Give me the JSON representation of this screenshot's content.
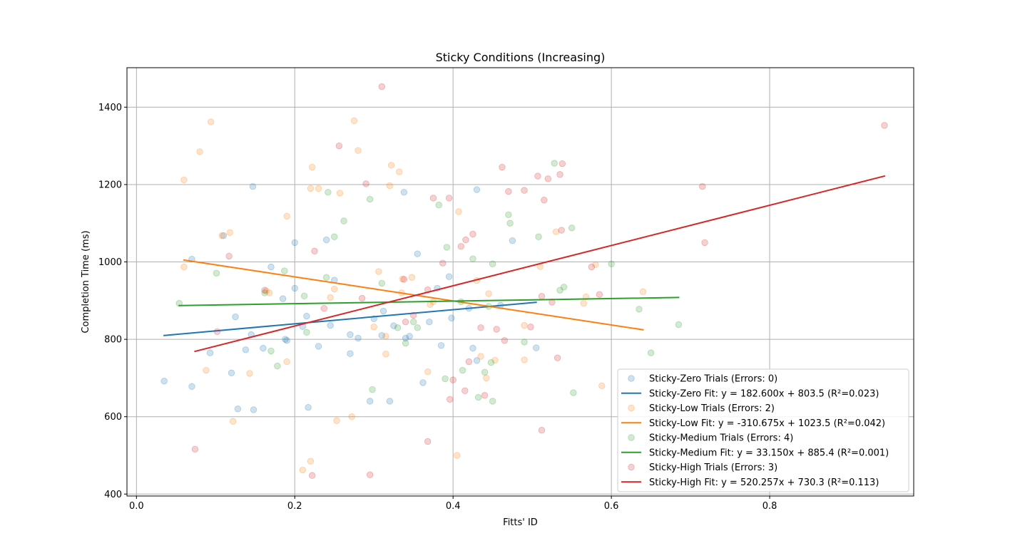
{
  "chart_data": {
    "type": "scatter",
    "title": "Sticky Conditions (Increasing)",
    "xlabel": "Fitts' ID",
    "ylabel": "Completion Time (ms)",
    "xlim": [
      -0.012,
      0.982
    ],
    "ylim": [
      395,
      1502
    ],
    "xticks": [
      0.0,
      0.2,
      0.4,
      0.6,
      0.8
    ],
    "xtick_labels": [
      "0.0",
      "0.2",
      "0.4",
      "0.6",
      "0.8"
    ],
    "yticks": [
      400,
      600,
      800,
      1000,
      1200,
      1400
    ],
    "ytick_labels": [
      "400",
      "600",
      "800",
      "1000",
      "1200",
      "1400"
    ],
    "grid": true,
    "legend_position": "lower-right",
    "series": [
      {
        "name": "Sticky-Zero Trials (Errors: 0)",
        "kind": "scatter",
        "color": "#1f77b4",
        "points": [
          [
            0.035,
            692
          ],
          [
            0.07,
            1007
          ],
          [
            0.07,
            678
          ],
          [
            0.093,
            765
          ],
          [
            0.11,
            1068
          ],
          [
            0.12,
            713
          ],
          [
            0.125,
            858
          ],
          [
            0.128,
            620
          ],
          [
            0.138,
            773
          ],
          [
            0.145,
            812
          ],
          [
            0.147,
            1195
          ],
          [
            0.148,
            618
          ],
          [
            0.16,
            777
          ],
          [
            0.17,
            987
          ],
          [
            0.185,
            905
          ],
          [
            0.188,
            800
          ],
          [
            0.19,
            797
          ],
          [
            0.2,
            932
          ],
          [
            0.2,
            1050
          ],
          [
            0.21,
            833
          ],
          [
            0.215,
            860
          ],
          [
            0.217,
            624
          ],
          [
            0.23,
            782
          ],
          [
            0.24,
            1057
          ],
          [
            0.245,
            836
          ],
          [
            0.25,
            953
          ],
          [
            0.27,
            812
          ],
          [
            0.27,
            763
          ],
          [
            0.28,
            803
          ],
          [
            0.295,
            640
          ],
          [
            0.3,
            853
          ],
          [
            0.31,
            810
          ],
          [
            0.312,
            873
          ],
          [
            0.32,
            640
          ],
          [
            0.325,
            835
          ],
          [
            0.338,
            1180
          ],
          [
            0.34,
            803
          ],
          [
            0.345,
            808
          ],
          [
            0.355,
            1021
          ],
          [
            0.362,
            688
          ],
          [
            0.37,
            845
          ],
          [
            0.38,
            932
          ],
          [
            0.385,
            784
          ],
          [
            0.395,
            962
          ],
          [
            0.398,
            855
          ],
          [
            0.42,
            880
          ],
          [
            0.425,
            777
          ],
          [
            0.43,
            1187
          ],
          [
            0.43,
            745
          ],
          [
            0.46,
            888
          ],
          [
            0.475,
            1055
          ],
          [
            0.505,
            778
          ]
        ]
      },
      {
        "name": "Sticky-Zero Fit: y = 182.600x + 803.5 (R²=0.023)",
        "kind": "line",
        "color": "#1f77b4",
        "x": [
          0.035,
          0.505
        ],
        "y": [
          809.9,
          895.7
        ]
      },
      {
        "name": "Sticky-Low Trials (Errors: 2)",
        "kind": "scatter",
        "color": "#ff7f0e",
        "points": [
          [
            0.06,
            1212
          ],
          [
            0.06,
            987
          ],
          [
            0.08,
            1285
          ],
          [
            0.088,
            720
          ],
          [
            0.094,
            1362
          ],
          [
            0.108,
            1068
          ],
          [
            0.118,
            1076
          ],
          [
            0.122,
            588
          ],
          [
            0.143,
            712
          ],
          [
            0.164,
            925
          ],
          [
            0.168,
            920
          ],
          [
            0.19,
            1118
          ],
          [
            0.19,
            742
          ],
          [
            0.21,
            462
          ],
          [
            0.22,
            1190
          ],
          [
            0.22,
            485
          ],
          [
            0.222,
            1245
          ],
          [
            0.23,
            1190
          ],
          [
            0.245,
            908
          ],
          [
            0.25,
            930
          ],
          [
            0.253,
            590
          ],
          [
            0.257,
            1178
          ],
          [
            0.272,
            600
          ],
          [
            0.275,
            1365
          ],
          [
            0.28,
            1288
          ],
          [
            0.3,
            832
          ],
          [
            0.306,
            975
          ],
          [
            0.315,
            762
          ],
          [
            0.315,
            808
          ],
          [
            0.32,
            1197
          ],
          [
            0.322,
            1250
          ],
          [
            0.332,
            1233
          ],
          [
            0.335,
            920
          ],
          [
            0.336,
            956
          ],
          [
            0.348,
            960
          ],
          [
            0.368,
            716
          ],
          [
            0.371,
            890
          ],
          [
            0.375,
            897
          ],
          [
            0.405,
            500
          ],
          [
            0.407,
            1130
          ],
          [
            0.43,
            952
          ],
          [
            0.435,
            756
          ],
          [
            0.442,
            700
          ],
          [
            0.445,
            918
          ],
          [
            0.453,
            746
          ],
          [
            0.49,
            836
          ],
          [
            0.49,
            747
          ],
          [
            0.51,
            988
          ],
          [
            0.53,
            1078
          ],
          [
            0.565,
            893
          ],
          [
            0.568,
            910
          ],
          [
            0.58,
            993
          ],
          [
            0.588,
            680
          ],
          [
            0.64,
            923
          ]
        ]
      },
      {
        "name": "Sticky-Low Fit: y = -310.675x + 1023.5 (R²=0.042)",
        "kind": "line",
        "color": "#ff7f0e",
        "x": [
          0.06,
          0.64
        ],
        "y": [
          1004.9,
          824.7
        ]
      },
      {
        "name": "Sticky-Medium Trials (Errors: 4)",
        "kind": "scatter",
        "color": "#2ca02c",
        "points": [
          [
            0.054,
            893
          ],
          [
            0.101,
            971
          ],
          [
            0.162,
            920
          ],
          [
            0.17,
            770
          ],
          [
            0.178,
            731
          ],
          [
            0.187,
            977
          ],
          [
            0.212,
            912
          ],
          [
            0.215,
            818
          ],
          [
            0.24,
            960
          ],
          [
            0.242,
            1180
          ],
          [
            0.25,
            1065
          ],
          [
            0.262,
            1106
          ],
          [
            0.295,
            1162
          ],
          [
            0.298,
            670
          ],
          [
            0.31,
            945
          ],
          [
            0.33,
            830
          ],
          [
            0.34,
            790
          ],
          [
            0.35,
            845
          ],
          [
            0.355,
            830
          ],
          [
            0.382,
            1147
          ],
          [
            0.39,
            698
          ],
          [
            0.392,
            1038
          ],
          [
            0.41,
            897
          ],
          [
            0.412,
            720
          ],
          [
            0.425,
            1008
          ],
          [
            0.432,
            650
          ],
          [
            0.44,
            715
          ],
          [
            0.445,
            885
          ],
          [
            0.448,
            740
          ],
          [
            0.45,
            995
          ],
          [
            0.45,
            640
          ],
          [
            0.47,
            1122
          ],
          [
            0.472,
            1100
          ],
          [
            0.49,
            793
          ],
          [
            0.508,
            1065
          ],
          [
            0.528,
            1255
          ],
          [
            0.535,
            927
          ],
          [
            0.54,
            935
          ],
          [
            0.55,
            1088
          ],
          [
            0.552,
            662
          ],
          [
            0.6,
            995
          ],
          [
            0.635,
            878
          ],
          [
            0.65,
            765
          ],
          [
            0.685,
            838
          ]
        ]
      },
      {
        "name": "Sticky-Medium Fit: y = 33.150x + 885.4 (R²=0.001)",
        "kind": "line",
        "color": "#2ca02c",
        "x": [
          0.054,
          0.685
        ],
        "y": [
          887.2,
          908.1
        ]
      },
      {
        "name": "Sticky-High Trials (Errors: 3)",
        "kind": "scatter",
        "color": "#d62728",
        "points": [
          [
            0.074,
            516
          ],
          [
            0.102,
            820
          ],
          [
            0.117,
            1015
          ],
          [
            0.162,
            927
          ],
          [
            0.222,
            448
          ],
          [
            0.225,
            1028
          ],
          [
            0.237,
            880
          ],
          [
            0.256,
            1300
          ],
          [
            0.285,
            906
          ],
          [
            0.29,
            1202
          ],
          [
            0.295,
            450
          ],
          [
            0.31,
            1453
          ],
          [
            0.338,
            955
          ],
          [
            0.34,
            845
          ],
          [
            0.35,
            862
          ],
          [
            0.368,
            928
          ],
          [
            0.368,
            536
          ],
          [
            0.375,
            1165
          ],
          [
            0.387,
            997
          ],
          [
            0.395,
            1165
          ],
          [
            0.396,
            645
          ],
          [
            0.4,
            695
          ],
          [
            0.41,
            1040
          ],
          [
            0.415,
            667
          ],
          [
            0.416,
            1057
          ],
          [
            0.42,
            742
          ],
          [
            0.425,
            1072
          ],
          [
            0.435,
            830
          ],
          [
            0.44,
            655
          ],
          [
            0.455,
            826
          ],
          [
            0.462,
            1245
          ],
          [
            0.465,
            797
          ],
          [
            0.47,
            1182
          ],
          [
            0.49,
            1185
          ],
          [
            0.498,
            832
          ],
          [
            0.507,
            1222
          ],
          [
            0.512,
            911
          ],
          [
            0.512,
            565
          ],
          [
            0.515,
            1160
          ],
          [
            0.52,
            1215
          ],
          [
            0.525,
            896
          ],
          [
            0.532,
            752
          ],
          [
            0.535,
            1226
          ],
          [
            0.537,
            1082
          ],
          [
            0.538,
            1254
          ],
          [
            0.575,
            987
          ],
          [
            0.585,
            916
          ],
          [
            0.715,
            1195
          ],
          [
            0.718,
            1050
          ],
          [
            0.945,
            1353
          ]
        ]
      },
      {
        "name": "Sticky-High Fit: y = 520.257x + 730.3 (R²=0.113)",
        "kind": "line",
        "color": "#d62728",
        "x": [
          0.074,
          0.945
        ],
        "y": [
          768.8,
          1221.9
        ]
      }
    ]
  }
}
